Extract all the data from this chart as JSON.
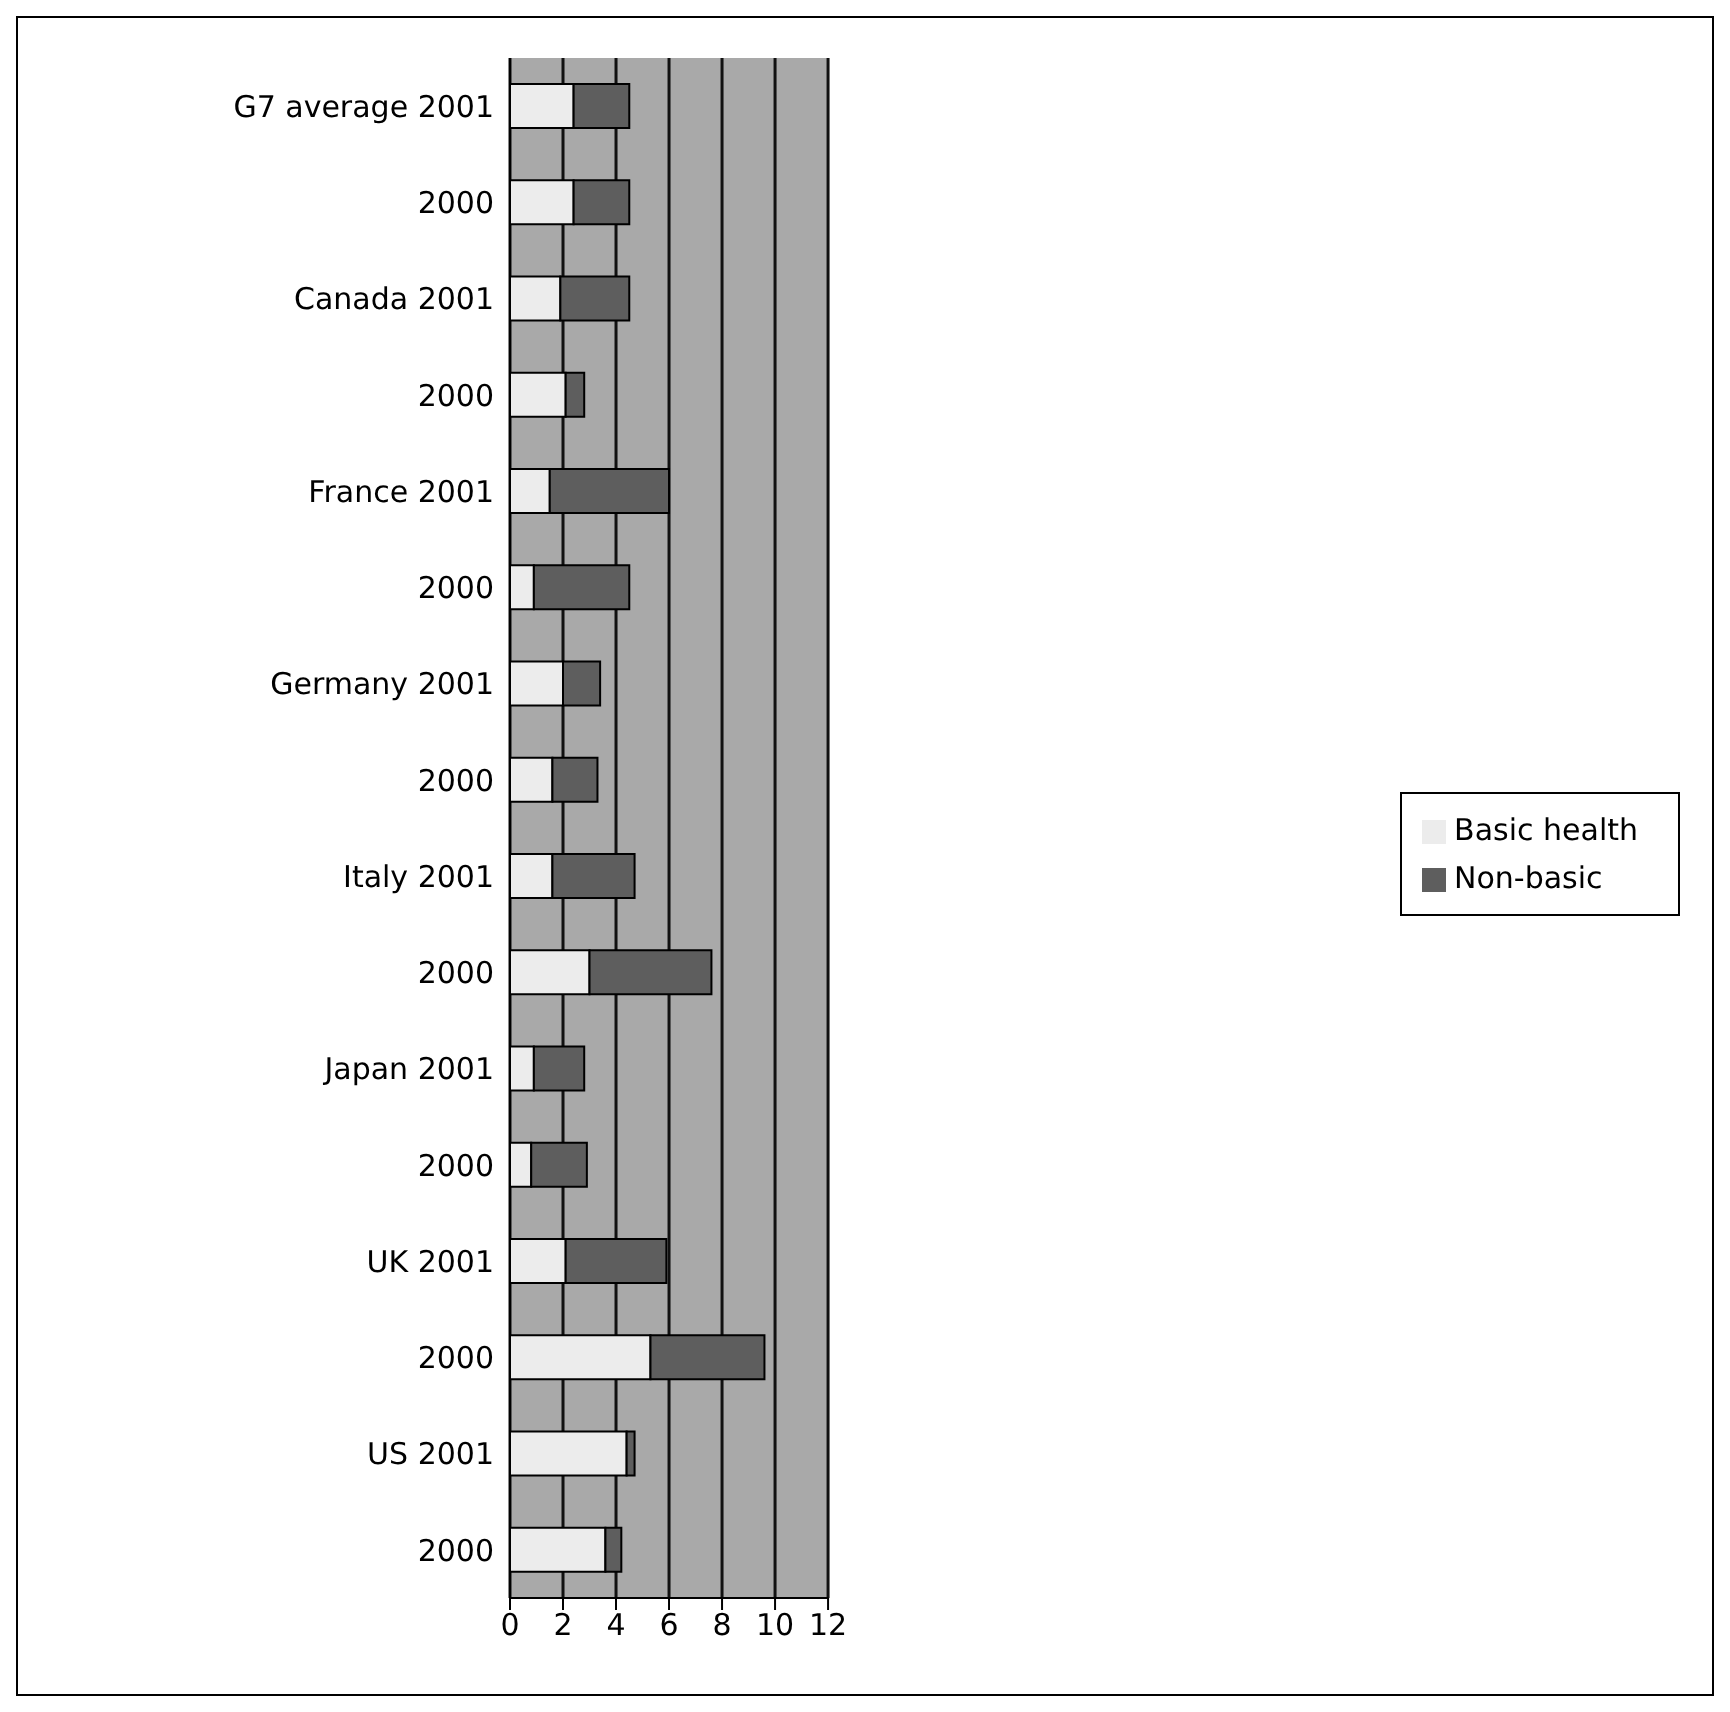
{
  "chart_data": {
    "type": "bar",
    "orientation": "horizontal",
    "stacked": true,
    "categories": [
      "G7 average 2001",
      "2000",
      "Canada 2001",
      "2000",
      "France 2001",
      "2000",
      "Germany 2001",
      "2000",
      "Italy 2001",
      "2000",
      "Japan 2001",
      "2000",
      "UK 2001",
      "2000",
      "US 2001",
      "2000"
    ],
    "series": [
      {
        "name": "Basic health",
        "color": "#ececec",
        "values": [
          2.4,
          2.4,
          1.9,
          2.1,
          1.5,
          0.9,
          2.0,
          1.6,
          1.6,
          3.0,
          0.9,
          0.8,
          2.1,
          5.3,
          4.4,
          3.6
        ]
      },
      {
        "name": "Non-basic",
        "color": "#5e5e5e",
        "values": [
          2.1,
          2.1,
          2.6,
          0.7,
          4.5,
          3.6,
          1.4,
          1.7,
          3.1,
          4.6,
          1.9,
          2.1,
          3.8,
          4.3,
          0.3,
          0.6
        ]
      }
    ],
    "xlim": [
      0,
      12
    ],
    "xticks": [
      0,
      2,
      4,
      6,
      8,
      10,
      12
    ],
    "grid": "x",
    "legend": "right"
  }
}
